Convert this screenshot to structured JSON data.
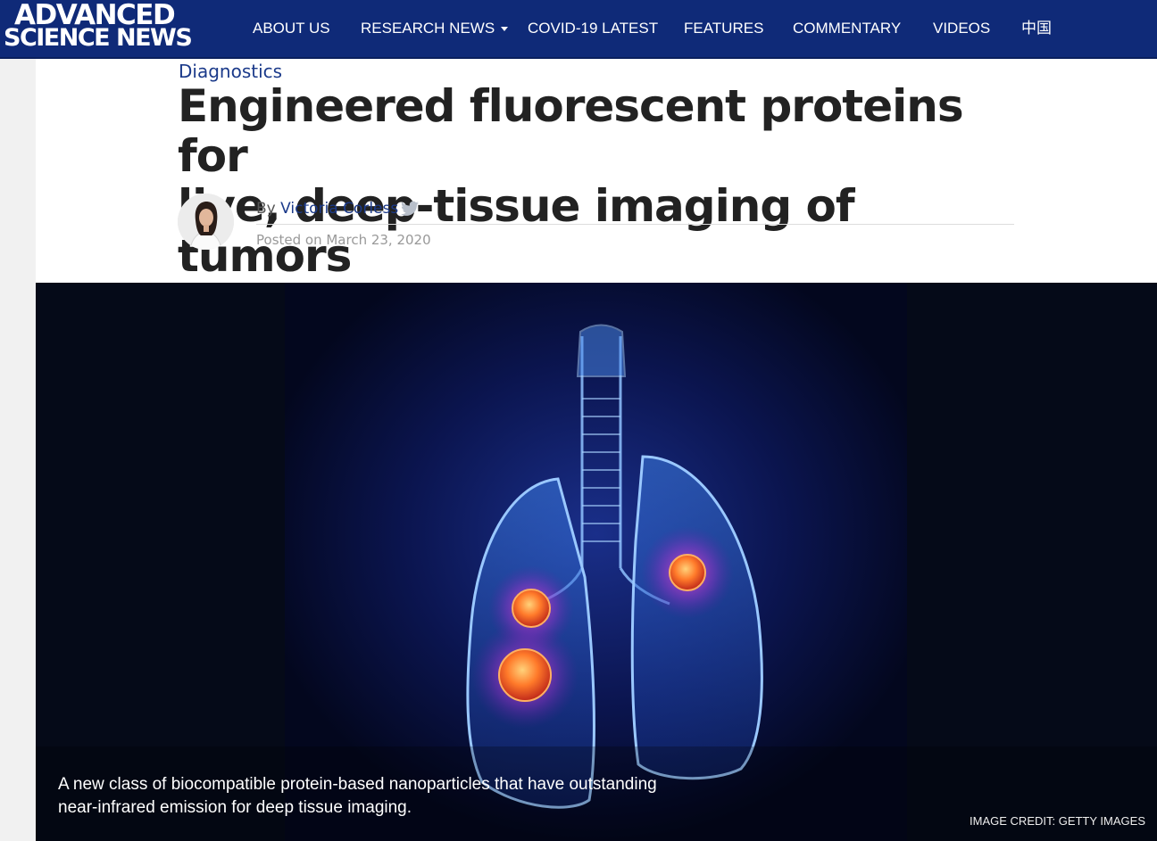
{
  "site": {
    "logo_line1": "ADVANCED",
    "logo_line2": "SCIENCE NEWS",
    "brand_color": "#0f2a78"
  },
  "nav": {
    "about": "ABOUT US",
    "research": "RESEARCH NEWS",
    "covid": "COVID-19 LATEST",
    "features": "FEATURES",
    "commentary": "COMMENTARY",
    "videos": "VIDEOS",
    "china": "中国"
  },
  "article": {
    "category": "Diagnostics",
    "title_line1": "Engineered fluorescent proteins for",
    "title_line2": "live, deep-tissue imaging of tumors",
    "by_prefix": "By",
    "author": "Victoria Corless",
    "posted": "Posted on March 23, 2020",
    "avatar_icon": "author-avatar",
    "social_icon": "twitter-icon"
  },
  "hero": {
    "caption_line1": "A new class of biocompatible protein-based nanoparticles that have outstanding",
    "caption_line2": "near-infrared emission for deep tissue imaging.",
    "credit": "IMAGE CREDIT: GETTY IMAGES"
  }
}
